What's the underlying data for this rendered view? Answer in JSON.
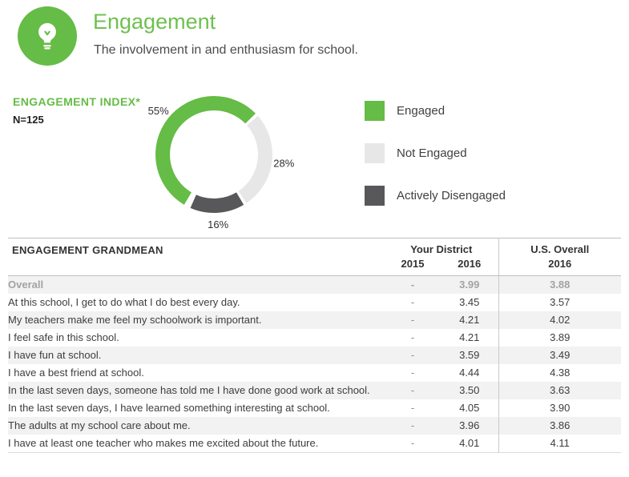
{
  "colors": {
    "accent": "#65bc46",
    "title_green": "#6fc050",
    "stripe": "#f2f2f2"
  },
  "header": {
    "title": "Engagement",
    "subtitle": "The involvement in and enthusiasm for school.",
    "icon": "lightbulb-icon"
  },
  "index_panel": {
    "title": "ENGAGEMENT INDEX*",
    "n_label": "N=125"
  },
  "chart_data": {
    "type": "pie",
    "donut": true,
    "title": "Engagement Index",
    "start_angle_deg": 209,
    "legend_position": "right",
    "slices": [
      {
        "label": "Engaged",
        "value": 55,
        "display": "55%",
        "color": "#65bc46"
      },
      {
        "label": "Not Engaged",
        "value": 28,
        "display": "28%",
        "color": "#e7e7e7"
      },
      {
        "label": "Actively Disengaged",
        "value": 16,
        "display": "16%",
        "color": "#58585a"
      }
    ]
  },
  "table": {
    "title": "ENGAGEMENT GRANDMEAN",
    "groups": [
      {
        "label": "Your District",
        "cols": [
          "2015",
          "2016"
        ]
      },
      {
        "label": "U.S. Overall",
        "cols": [
          "2016"
        ]
      }
    ],
    "rows": [
      {
        "label": "Overall",
        "district_2015": "-",
        "district_2016": "3.99",
        "us_2016": "3.88",
        "emphasis": true
      },
      {
        "label": "At this school, I get to do what I do best every day.",
        "district_2015": "-",
        "district_2016": "3.45",
        "us_2016": "3.57"
      },
      {
        "label": "My teachers make me feel my schoolwork is important.",
        "district_2015": "-",
        "district_2016": "4.21",
        "us_2016": "4.02"
      },
      {
        "label": "I feel safe in this school.",
        "district_2015": "-",
        "district_2016": "4.21",
        "us_2016": "3.89"
      },
      {
        "label": "I have fun at school.",
        "district_2015": "-",
        "district_2016": "3.59",
        "us_2016": "3.49"
      },
      {
        "label": "I have a best friend at school.",
        "district_2015": "-",
        "district_2016": "4.44",
        "us_2016": "4.38"
      },
      {
        "label": "In the last seven days, someone has told me I have done good work at school.",
        "district_2015": "-",
        "district_2016": "3.50",
        "us_2016": "3.63"
      },
      {
        "label": "In the last seven days, I have learned something interesting at school.",
        "district_2015": "-",
        "district_2016": "4.05",
        "us_2016": "3.90"
      },
      {
        "label": "The adults at my school care about me.",
        "district_2015": "-",
        "district_2016": "3.96",
        "us_2016": "3.86"
      },
      {
        "label": "I have at least one teacher who makes me excited about the future.",
        "district_2015": "-",
        "district_2016": "4.01",
        "us_2016": "4.11"
      }
    ]
  }
}
